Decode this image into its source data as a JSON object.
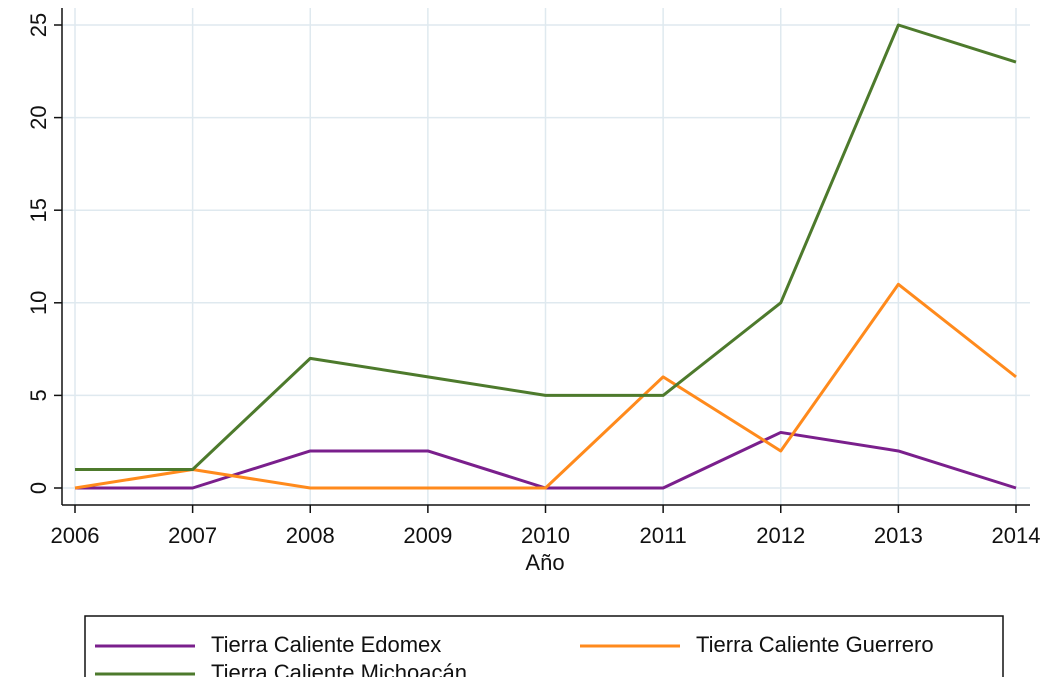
{
  "chart_data": {
    "type": "line",
    "x": [
      2006,
      2007,
      2008,
      2009,
      2010,
      2011,
      2012,
      2013,
      2014
    ],
    "series": [
      {
        "name": "Tierra Caliente Edomex",
        "color": "#7a1f8c",
        "values": [
          0,
          0,
          2,
          2,
          0,
          0,
          3,
          2,
          0
        ]
      },
      {
        "name": "Tierra Caliente Guerrero",
        "color": "#ff8a1c",
        "values": [
          0,
          1,
          0,
          0,
          0,
          6,
          2,
          11,
          6
        ]
      },
      {
        "name": "Tierra Caliente Michoacán",
        "color": "#4d7a2c",
        "values": [
          1,
          1,
          7,
          6,
          5,
          5,
          10,
          25,
          23
        ]
      }
    ],
    "xlabel": "Año",
    "xlim": [
      2006,
      2014
    ],
    "xticks": [
      2006,
      2007,
      2008,
      2009,
      2010,
      2011,
      2012,
      2013,
      2014
    ],
    "ylim": [
      0,
      25
    ],
    "yticks": [
      0,
      5,
      10,
      15,
      20,
      25
    ],
    "grid": true,
    "legend": "bottom"
  }
}
